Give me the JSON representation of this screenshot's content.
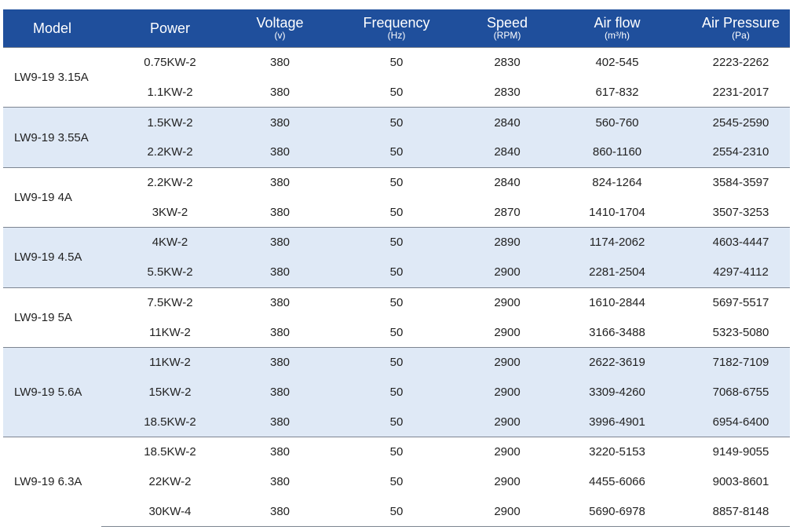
{
  "headers": [
    {
      "title": "Model",
      "unit": ""
    },
    {
      "title": "Power",
      "unit": ""
    },
    {
      "title": "Voltage",
      "unit": "(v)"
    },
    {
      "title": "Frequency",
      "unit": "(Hz)"
    },
    {
      "title": "Speed",
      "unit": "(RPM)"
    },
    {
      "title": "Air flow",
      "unit": "(m³/h)"
    },
    {
      "title": "Air Pressure",
      "unit": "(Pa)"
    }
  ],
  "groups": [
    {
      "model": "LW9-19 3.15A",
      "rows": [
        [
          "0.75KW-2",
          "380",
          "50",
          "2830",
          "402-545",
          "2223-2262"
        ],
        [
          "1.1KW-2",
          "380",
          "50",
          "2830",
          "617-832",
          "2231-2017"
        ]
      ]
    },
    {
      "model": "LW9-19 3.55A",
      "rows": [
        [
          "1.5KW-2",
          "380",
          "50",
          "2840",
          "560-760",
          "2545-2590"
        ],
        [
          "2.2KW-2",
          "380",
          "50",
          "2840",
          "860-1160",
          "2554-2310"
        ]
      ]
    },
    {
      "model": "LW9-19 4A",
      "rows": [
        [
          "2.2KW-2",
          "380",
          "50",
          "2840",
          "824-1264",
          "3584-3597"
        ],
        [
          "3KW-2",
          "380",
          "50",
          "2870",
          "1410-1704",
          "3507-3253"
        ]
      ]
    },
    {
      "model": "LW9-19 4.5A",
      "rows": [
        [
          "4KW-2",
          "380",
          "50",
          "2890",
          "1174-2062",
          "4603-4447"
        ],
        [
          "5.5KW-2",
          "380",
          "50",
          "2900",
          "2281-2504",
          "4297-4112"
        ]
      ]
    },
    {
      "model": "LW9-19 5A",
      "rows": [
        [
          "7.5KW-2",
          "380",
          "50",
          "2900",
          "1610-2844",
          "5697-5517"
        ],
        [
          "11KW-2",
          "380",
          "50",
          "2900",
          "3166-3488",
          "5323-5080"
        ]
      ]
    },
    {
      "model": "LW9-19 5.6A",
      "rows": [
        [
          "11KW-2",
          "380",
          "50",
          "2900",
          "2622-3619",
          "7182-7109"
        ],
        [
          "15KW-2",
          "380",
          "50",
          "2900",
          "3309-4260",
          "7068-6755"
        ],
        [
          "18.5KW-2",
          "380",
          "50",
          "2900",
          "3996-4901",
          "6954-6400"
        ]
      ]
    },
    {
      "model": "LW9-19 6.3A",
      "rows": [
        [
          "18.5KW-2",
          "380",
          "50",
          "2900",
          "3220-5153",
          "9149-9055"
        ],
        [
          "22KW-2",
          "380",
          "50",
          "2900",
          "4455-6066",
          "9003-8601"
        ],
        [
          "30KW-4",
          "380",
          "50",
          "2900",
          "5690-6978",
          "8857-8148"
        ]
      ]
    }
  ]
}
